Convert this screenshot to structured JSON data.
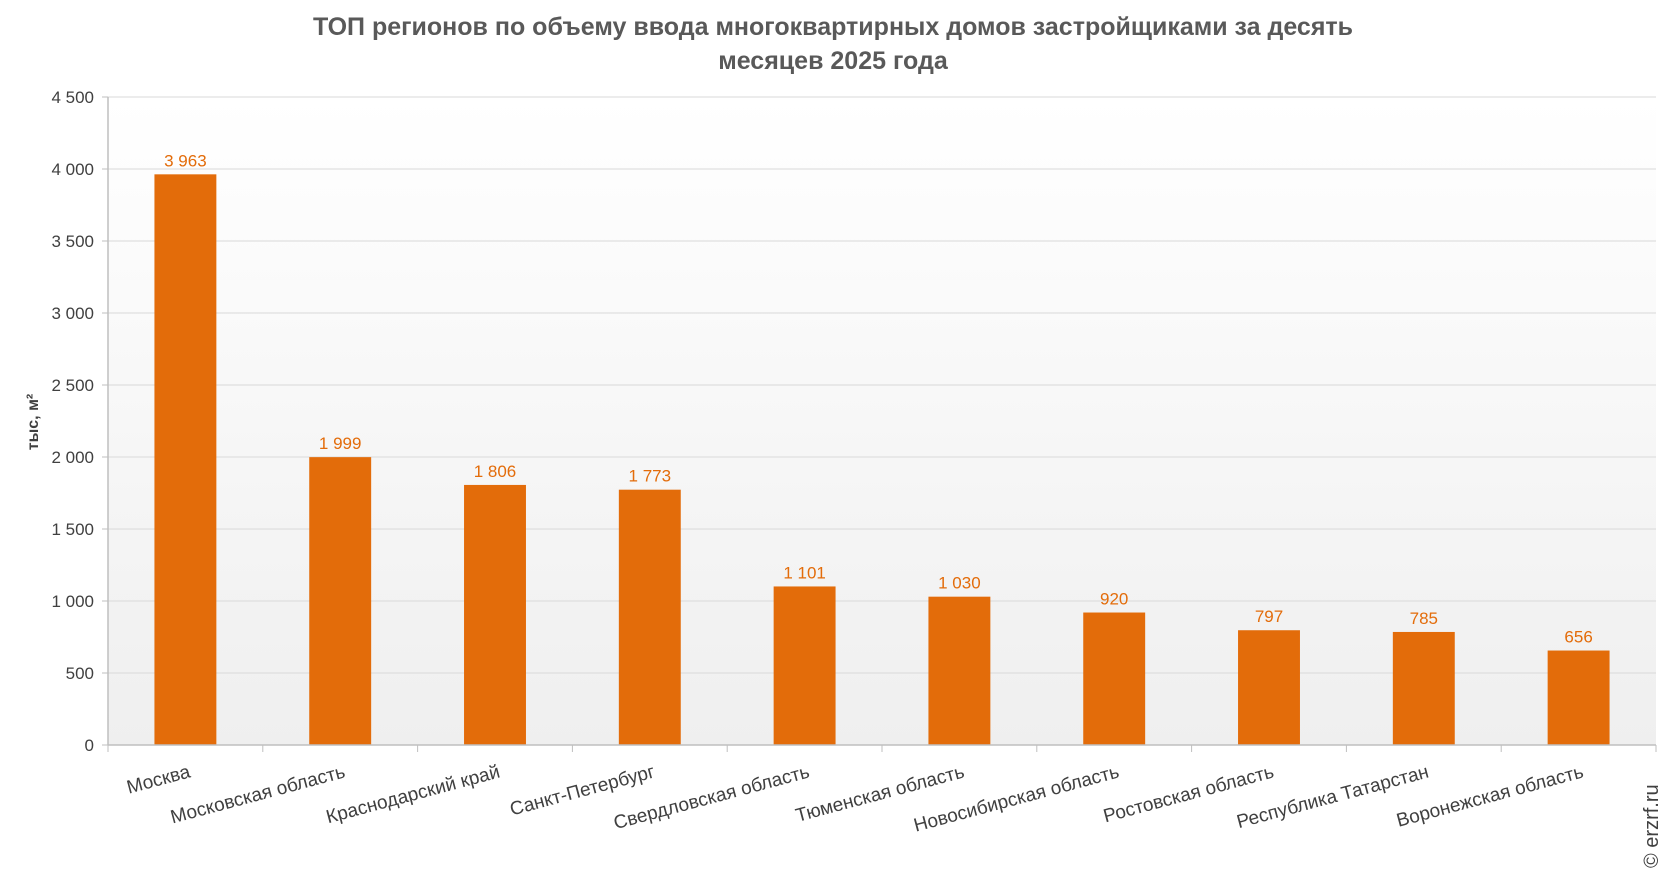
{
  "chart_data": {
    "type": "bar",
    "title_line1": "ТОП регионов по объему ввода многоквартирных домов застройщиками за десять",
    "title_line2": "месяцев 2025 года",
    "xlabel": "",
    "ylabel": "тыс, м²",
    "ylim": [
      0,
      4500
    ],
    "yticks": [
      0,
      500,
      1000,
      1500,
      2000,
      2500,
      3000,
      3500,
      4000,
      4500
    ],
    "ytick_labels": [
      "0",
      "500",
      "1 000",
      "1 500",
      "2 000",
      "2 500",
      "3 000",
      "3 500",
      "4 000",
      "4 500"
    ],
    "categories": [
      "Москва",
      "Московская область",
      "Краснодарский край",
      "Санкт-Петербург",
      "Свердловская область",
      "Тюменская область",
      "Новосибирская область",
      "Ростовская область",
      "Республика Татарстан",
      "Воронежская область"
    ],
    "values": [
      3963,
      1999,
      1806,
      1773,
      1101,
      1030,
      920,
      797,
      785,
      656
    ],
    "value_labels": [
      "3 963",
      "1 999",
      "1 806",
      "1 773",
      "1 101",
      "1 030",
      "920",
      "797",
      "785",
      "656"
    ],
    "grid": true,
    "legend": "none",
    "colors": {
      "bar": "#e36c0a",
      "data_label": "#e36c0a",
      "plot_bg_top": "#ffffff",
      "plot_bg_bottom": "#efefef",
      "grid": "#d9d9d9",
      "axis": "#bfbfbf"
    }
  },
  "copyright": "© erzrf.ru"
}
